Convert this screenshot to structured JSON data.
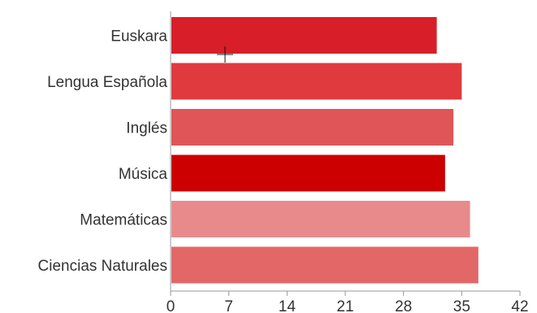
{
  "chart_data": {
    "type": "bar",
    "orientation": "horizontal",
    "categories": [
      "Euskara",
      "Lengua Española",
      "Inglés",
      "Música",
      "Matemáticas",
      "Ciencias Naturales"
    ],
    "values": [
      32,
      35,
      34,
      33,
      36,
      37
    ],
    "colors": [
      "#d81e28",
      "#e03a3f",
      "#e05558",
      "#cc0000",
      "#e88a8c",
      "#e26868"
    ],
    "xlim": [
      0,
      42
    ],
    "xticks": [
      "0",
      "7",
      "14",
      "21",
      "28",
      "35",
      "42"
    ],
    "grid": false,
    "title": "",
    "xlabel": "",
    "ylabel": ""
  }
}
